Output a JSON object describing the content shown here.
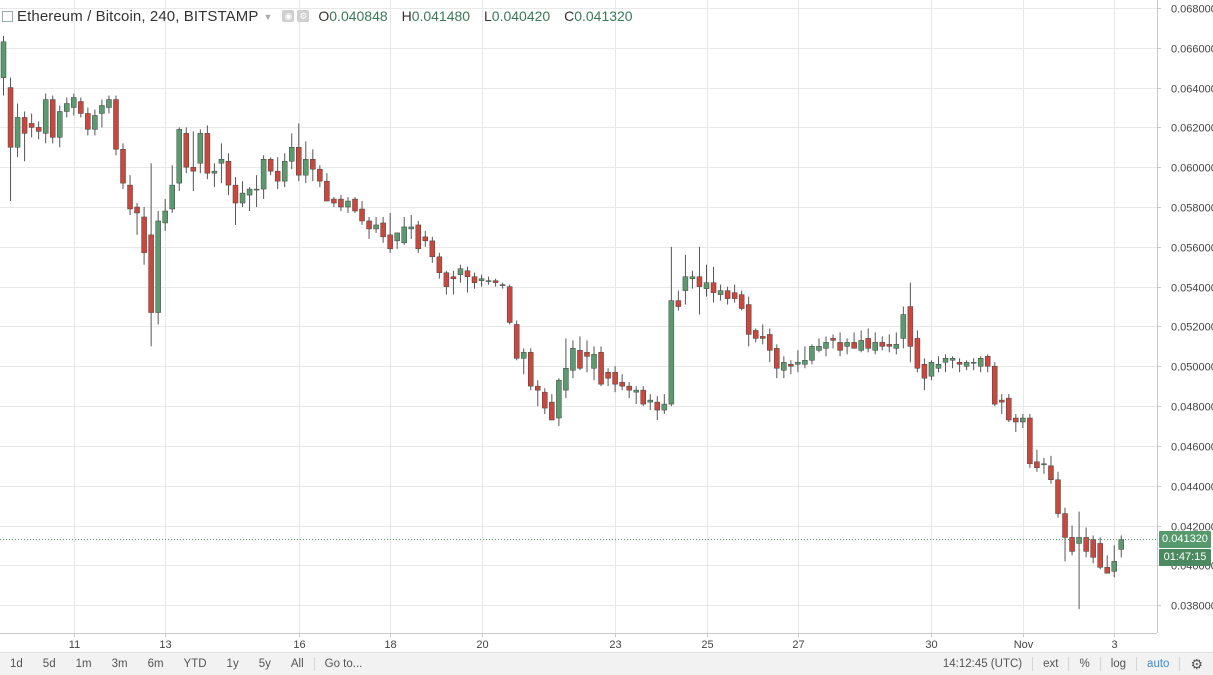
{
  "header": {
    "title": "Ethereum / Bitcoin, 240, BITSTAMP",
    "ohlc": [
      {
        "key": "O",
        "value": "0.040848"
      },
      {
        "key": "H",
        "value": "0.041480"
      },
      {
        "key": "L",
        "value": "0.040420"
      },
      {
        "key": "C",
        "value": "0.041320"
      }
    ]
  },
  "price_tags": {
    "last_price": "0.041320",
    "countdown": "01:47:15"
  },
  "bottom_bar": {
    "ranges": [
      "1d",
      "5d",
      "1m",
      "3m",
      "6m",
      "YTD",
      "1y",
      "5y",
      "All"
    ],
    "goto": "Go to...",
    "time": "14:12:45 (UTC)",
    "ext": "ext",
    "percent": "%",
    "log": "log",
    "auto": "auto"
  },
  "colors": {
    "up": "#5b9a6e",
    "down": "#c9473d",
    "grid": "#e8e8e8",
    "price_tag": "#56996c",
    "countdown_tag": "#4b8a60"
  },
  "chart_data": {
    "type": "candlestick",
    "title": "Ethereum / Bitcoin, 240, BITSTAMP",
    "y_ticks": [
      "0.068000",
      "0.066000",
      "0.064000",
      "0.062000",
      "0.060000",
      "0.058000",
      "0.056000",
      "0.054000",
      "0.052000",
      "0.050000",
      "0.048000",
      "0.046000",
      "0.044000",
      "0.042000",
      "0.040000",
      "0.038000"
    ],
    "ylim": [
      0.0366,
      0.0684
    ],
    "x_ticks": [
      {
        "label": "11",
        "index": 10
      },
      {
        "label": "13",
        "index": 23
      },
      {
        "label": "16",
        "index": 42
      },
      {
        "label": "18",
        "index": 55
      },
      {
        "label": "20",
        "index": 68
      },
      {
        "label": "23",
        "index": 87
      },
      {
        "label": "25",
        "index": 100
      },
      {
        "label": "27",
        "index": 113
      },
      {
        "label": "30",
        "index": 132
      },
      {
        "label": "Nov",
        "index": 145
      },
      {
        "label": "3",
        "index": 158
      }
    ],
    "last_price": 0.04132,
    "candles": [
      [
        0.0645,
        0.0666,
        0.0636,
        0.0663
      ],
      [
        0.064,
        0.0645,
        0.0583,
        0.061
      ],
      [
        0.061,
        0.0632,
        0.0605,
        0.0625
      ],
      [
        0.0625,
        0.0628,
        0.0603,
        0.0617
      ],
      [
        0.0622,
        0.0627,
        0.0615,
        0.062
      ],
      [
        0.062,
        0.0623,
        0.0614,
        0.0618
      ],
      [
        0.0617,
        0.0637,
        0.0612,
        0.0634
      ],
      [
        0.0634,
        0.0636,
        0.0612,
        0.0615
      ],
      [
        0.0615,
        0.0631,
        0.061,
        0.0628
      ],
      [
        0.0628,
        0.0635,
        0.0625,
        0.0632
      ],
      [
        0.063,
        0.0637,
        0.0626,
        0.0635
      ],
      [
        0.0633,
        0.0635,
        0.0625,
        0.0627
      ],
      [
        0.0627,
        0.063,
        0.0616,
        0.0619
      ],
      [
        0.0619,
        0.0629,
        0.0616,
        0.0626
      ],
      [
        0.0627,
        0.0634,
        0.062,
        0.0631
      ],
      [
        0.063,
        0.0636,
        0.0627,
        0.0634
      ],
      [
        0.0634,
        0.0636,
        0.0606,
        0.0609
      ],
      [
        0.0609,
        0.0612,
        0.0589,
        0.0592
      ],
      [
        0.0591,
        0.0596,
        0.0576,
        0.0579
      ],
      [
        0.058,
        0.0582,
        0.0566,
        0.0577
      ],
      [
        0.0575,
        0.058,
        0.0551,
        0.0557
      ],
      [
        0.0566,
        0.0602,
        0.051,
        0.0527
      ],
      [
        0.0527,
        0.0578,
        0.0521,
        0.0573
      ],
      [
        0.0572,
        0.0584,
        0.0568,
        0.0578
      ],
      [
        0.0579,
        0.0601,
        0.0577,
        0.0591
      ],
      [
        0.0592,
        0.062,
        0.0588,
        0.0619
      ],
      [
        0.0617,
        0.062,
        0.0597,
        0.06
      ],
      [
        0.06,
        0.0618,
        0.0588,
        0.0598
      ],
      [
        0.0602,
        0.0619,
        0.0597,
        0.0617
      ],
      [
        0.0617,
        0.0621,
        0.0594,
        0.0597
      ],
      [
        0.0597,
        0.0602,
        0.059,
        0.0598
      ],
      [
        0.0602,
        0.0612,
        0.0592,
        0.0604
      ],
      [
        0.0603,
        0.0607,
        0.0586,
        0.0591
      ],
      [
        0.0591,
        0.0595,
        0.0571,
        0.0582
      ],
      [
        0.0582,
        0.0593,
        0.058,
        0.0587
      ],
      [
        0.0586,
        0.059,
        0.0578,
        0.0589
      ],
      [
        0.0589,
        0.0596,
        0.058,
        0.0589
      ],
      [
        0.0589,
        0.0606,
        0.0584,
        0.0604
      ],
      [
        0.0604,
        0.0605,
        0.0596,
        0.0598
      ],
      [
        0.0598,
        0.0605,
        0.0589,
        0.0593
      ],
      [
        0.0593,
        0.0607,
        0.059,
        0.0603
      ],
      [
        0.0603,
        0.0617,
        0.0599,
        0.061
      ],
      [
        0.061,
        0.0622,
        0.0593,
        0.0596
      ],
      [
        0.0596,
        0.0613,
        0.0592,
        0.0604
      ],
      [
        0.0604,
        0.0609,
        0.0593,
        0.0599
      ],
      [
        0.0599,
        0.0601,
        0.059,
        0.0593
      ],
      [
        0.0593,
        0.0597,
        0.0583,
        0.0583
      ],
      [
        0.0584,
        0.0585,
        0.058,
        0.0582
      ],
      [
        0.0584,
        0.0586,
        0.0578,
        0.058
      ],
      [
        0.058,
        0.0585,
        0.0577,
        0.0583
      ],
      [
        0.0584,
        0.0585,
        0.0577,
        0.0578
      ],
      [
        0.0579,
        0.0583,
        0.0571,
        0.0573
      ],
      [
        0.0573,
        0.0575,
        0.0564,
        0.0569
      ],
      [
        0.0569,
        0.0575,
        0.0567,
        0.0571
      ],
      [
        0.0572,
        0.0575,
        0.0562,
        0.0565
      ],
      [
        0.0566,
        0.0577,
        0.0557,
        0.0559
      ],
      [
        0.0563,
        0.0567,
        0.0559,
        0.0567
      ],
      [
        0.0562,
        0.0575,
        0.0561,
        0.057
      ],
      [
        0.0569,
        0.0576,
        0.0564,
        0.057
      ],
      [
        0.0571,
        0.0573,
        0.0557,
        0.0559
      ],
      [
        0.0565,
        0.0568,
        0.056,
        0.0563
      ],
      [
        0.0563,
        0.0565,
        0.0552,
        0.0555
      ],
      [
        0.0555,
        0.0557,
        0.0544,
        0.0547
      ],
      [
        0.0547,
        0.0548,
        0.0536,
        0.054
      ],
      [
        0.0545,
        0.0548,
        0.0536,
        0.0544
      ],
      [
        0.0546,
        0.0551,
        0.0542,
        0.0549
      ],
      [
        0.0548,
        0.055,
        0.0537,
        0.0545
      ],
      [
        0.0545,
        0.0547,
        0.0539,
        0.0542
      ],
      [
        0.0543,
        0.0546,
        0.054,
        0.0544
      ],
      [
        0.0543,
        0.0545,
        0.0541,
        0.0543
      ],
      [
        0.0543,
        0.0544,
        0.054,
        0.0542
      ],
      [
        0.0541,
        0.0542,
        0.0539,
        0.0541
      ],
      [
        0.054,
        0.0541,
        0.0521,
        0.0522
      ],
      [
        0.0521,
        0.0523,
        0.0503,
        0.0504
      ],
      [
        0.0504,
        0.0509,
        0.0496,
        0.0507
      ],
      [
        0.0507,
        0.0509,
        0.0488,
        0.049
      ],
      [
        0.049,
        0.0493,
        0.048,
        0.0488
      ],
      [
        0.0487,
        0.0489,
        0.0476,
        0.0479
      ],
      [
        0.0482,
        0.0486,
        0.0473,
        0.0473
      ],
      [
        0.0474,
        0.0494,
        0.047,
        0.0493
      ],
      [
        0.0488,
        0.0514,
        0.0484,
        0.0499
      ],
      [
        0.0498,
        0.0513,
        0.0494,
        0.0509
      ],
      [
        0.0508,
        0.0515,
        0.0498,
        0.0499
      ],
      [
        0.0507,
        0.0513,
        0.0497,
        0.0505
      ],
      [
        0.0499,
        0.051,
        0.0493,
        0.0506
      ],
      [
        0.0507,
        0.051,
        0.049,
        0.0491
      ],
      [
        0.0497,
        0.0499,
        0.049,
        0.0494
      ],
      [
        0.0497,
        0.05,
        0.0487,
        0.0491
      ],
      [
        0.0492,
        0.0496,
        0.0488,
        0.049
      ],
      [
        0.049,
        0.0492,
        0.0484,
        0.0488
      ],
      [
        0.0487,
        0.049,
        0.0481,
        0.0488
      ],
      [
        0.0488,
        0.049,
        0.048,
        0.0481
      ],
      [
        0.0482,
        0.0486,
        0.0478,
        0.0483
      ],
      [
        0.0482,
        0.0485,
        0.0473,
        0.0478
      ],
      [
        0.0478,
        0.0486,
        0.0476,
        0.0481
      ],
      [
        0.0481,
        0.056,
        0.048,
        0.0533
      ],
      [
        0.0533,
        0.0538,
        0.0528,
        0.053
      ],
      [
        0.0538,
        0.0556,
        0.0531,
        0.0545
      ],
      [
        0.0544,
        0.0548,
        0.0539,
        0.0545
      ],
      [
        0.0545,
        0.056,
        0.0526,
        0.054
      ],
      [
        0.0539,
        0.0551,
        0.0535,
        0.0542
      ],
      [
        0.0542,
        0.055,
        0.0532,
        0.0537
      ],
      [
        0.0536,
        0.0541,
        0.0533,
        0.0538
      ],
      [
        0.0538,
        0.054,
        0.0531,
        0.0534
      ],
      [
        0.0537,
        0.0541,
        0.0532,
        0.0534
      ],
      [
        0.0536,
        0.0538,
        0.0528,
        0.0529
      ],
      [
        0.0531,
        0.0535,
        0.051,
        0.0516
      ],
      [
        0.0518,
        0.0519,
        0.0512,
        0.0514
      ],
      [
        0.0515,
        0.0521,
        0.0511,
        0.0514
      ],
      [
        0.0516,
        0.0519,
        0.0502,
        0.0508
      ],
      [
        0.0509,
        0.0511,
        0.0494,
        0.0499
      ],
      [
        0.0498,
        0.0505,
        0.0494,
        0.0502
      ],
      [
        0.0501,
        0.0503,
        0.0496,
        0.05
      ],
      [
        0.0501,
        0.0508,
        0.0497,
        0.0502
      ],
      [
        0.0501,
        0.051,
        0.0499,
        0.0503
      ],
      [
        0.0503,
        0.0511,
        0.0501,
        0.051
      ],
      [
        0.0508,
        0.0514,
        0.0507,
        0.051
      ],
      [
        0.0509,
        0.0515,
        0.0505,
        0.0512
      ],
      [
        0.0514,
        0.0516,
        0.0509,
        0.0513
      ],
      [
        0.0512,
        0.0517,
        0.0505,
        0.0508
      ],
      [
        0.051,
        0.0514,
        0.0506,
        0.0512
      ],
      [
        0.0512,
        0.0517,
        0.0509,
        0.0509
      ],
      [
        0.0508,
        0.0518,
        0.0507,
        0.0513
      ],
      [
        0.0514,
        0.0519,
        0.0507,
        0.0509
      ],
      [
        0.0508,
        0.0517,
        0.0506,
        0.0512
      ],
      [
        0.0512,
        0.0515,
        0.0508,
        0.051
      ],
      [
        0.0511,
        0.0516,
        0.0507,
        0.051
      ],
      [
        0.0509,
        0.0517,
        0.0506,
        0.0511
      ],
      [
        0.0514,
        0.053,
        0.0509,
        0.0526
      ],
      [
        0.053,
        0.0542,
        0.0502,
        0.051
      ],
      [
        0.0514,
        0.0518,
        0.0497,
        0.0499
      ],
      [
        0.0501,
        0.0504,
        0.0488,
        0.0494
      ],
      [
        0.0495,
        0.0503,
        0.0493,
        0.0502
      ],
      [
        0.0499,
        0.0505,
        0.0497,
        0.0501
      ],
      [
        0.0502,
        0.0506,
        0.0497,
        0.0504
      ],
      [
        0.0503,
        0.0505,
        0.0499,
        0.0504
      ],
      [
        0.0502,
        0.0504,
        0.0497,
        0.0501
      ],
      [
        0.05,
        0.0503,
        0.0498,
        0.0502
      ],
      [
        0.0502,
        0.0504,
        0.0498,
        0.0502
      ],
      [
        0.05,
        0.0505,
        0.0497,
        0.0504
      ],
      [
        0.0505,
        0.0506,
        0.0497,
        0.05
      ],
      [
        0.05,
        0.0502,
        0.048,
        0.0481
      ],
      [
        0.0483,
        0.0486,
        0.0476,
        0.0482
      ],
      [
        0.0484,
        0.0486,
        0.0472,
        0.0473
      ],
      [
        0.0474,
        0.0476,
        0.0467,
        0.0472
      ],
      [
        0.0472,
        0.0476,
        0.0469,
        0.0474
      ],
      [
        0.0474,
        0.0476,
        0.0449,
        0.0451
      ],
      [
        0.0452,
        0.0458,
        0.0447,
        0.0449
      ],
      [
        0.0451,
        0.0454,
        0.0446,
        0.0451
      ],
      [
        0.045,
        0.0455,
        0.0441,
        0.0443
      ],
      [
        0.0443,
        0.0447,
        0.0424,
        0.0426
      ],
      [
        0.0426,
        0.0429,
        0.0402,
        0.0414
      ],
      [
        0.0414,
        0.042,
        0.0405,
        0.0407
      ],
      [
        0.0411,
        0.0427,
        0.0378,
        0.0414
      ],
      [
        0.0414,
        0.0419,
        0.0404,
        0.0407
      ],
      [
        0.0413,
        0.0415,
        0.0401,
        0.0404
      ],
      [
        0.0411,
        0.0414,
        0.0398,
        0.0399
      ],
      [
        0.0399,
        0.0405,
        0.0396,
        0.0396
      ],
      [
        0.0397,
        0.041,
        0.0394,
        0.0402
      ],
      [
        0.0408,
        0.0415,
        0.0404,
        0.0413
      ]
    ]
  }
}
